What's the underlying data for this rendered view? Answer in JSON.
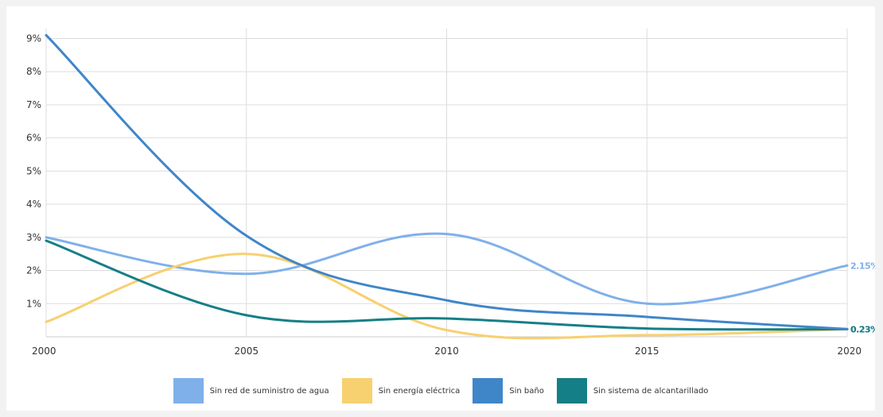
{
  "chart_data": {
    "type": "line",
    "title": "",
    "xlabel": "",
    "ylabel": "",
    "x": [
      2000,
      2005,
      2010,
      2015,
      2020
    ],
    "x_tick_labels": [
      "2000",
      "2005",
      "2010",
      "2015",
      "2020"
    ],
    "y_tick_labels": [
      "1%",
      "2%",
      "3%",
      "4%",
      "5%",
      "6%",
      "7%",
      "8%",
      "9%"
    ],
    "ylim": [
      0,
      9.3
    ],
    "xlim": [
      2000,
      2020
    ],
    "grid": true,
    "legend_position": "bottom",
    "series": [
      {
        "name": "Sin red de suministro de agua",
        "color": "#7fb0ea",
        "values": [
          3.0,
          1.9,
          3.1,
          1.0,
          2.15
        ],
        "end_label": "2.15%"
      },
      {
        "name": "Sin energía eléctrica",
        "color": "#f7d070",
        "values": [
          0.45,
          2.5,
          0.2,
          0.05,
          0.23
        ],
        "end_label": ""
      },
      {
        "name": "Sin baño",
        "color": "#3f86c9",
        "values": [
          9.1,
          3.05,
          1.1,
          0.6,
          0.23
        ],
        "end_label": "0.23%"
      },
      {
        "name": "Sin sistema de alcantarillado",
        "color": "#147f86",
        "values": [
          2.9,
          0.65,
          0.55,
          0.25,
          0.23
        ],
        "end_label": "0.23%"
      }
    ]
  }
}
